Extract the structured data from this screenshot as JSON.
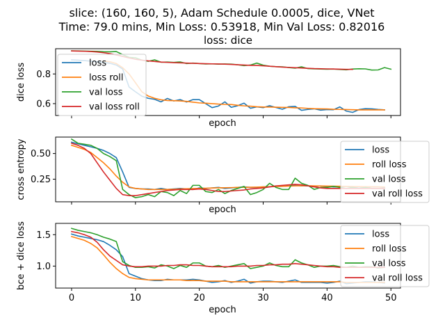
{
  "figure": {
    "suptitle_lines": [
      "slice: (160, 160, 5), Adam Schedule 0.0005, dice, VNet",
      "Time: 79.0 mins, Min Loss: 0.53918, Min Val Loss: 0.82016"
    ]
  },
  "colors": {
    "blue": "#1f77b4",
    "orange": "#ff7f0e",
    "green": "#2ca02c",
    "red": "#d62728"
  },
  "chart_data": [
    {
      "type": "line",
      "title": "loss: dice",
      "xlabel": "epoch",
      "ylabel": "dice loss",
      "xlim": [
        -2.5,
        51.5
      ],
      "ylim": [
        0.52,
        0.97
      ],
      "yticks": [
        0.6,
        0.8
      ],
      "ytick_labels": [
        "0.6",
        "0.8"
      ],
      "xticks": [
        0,
        10,
        20,
        30,
        40,
        50
      ],
      "xtick_labels": [],
      "legend_position": "upper left",
      "legend_alpha": 0.8,
      "series": [
        {
          "name": "loss",
          "color": "#1f77b4",
          "x_start": 0,
          "values": [
            0.895,
            0.893,
            0.89,
            0.886,
            0.882,
            0.878,
            0.872,
            0.86,
            0.833,
            0.712,
            0.68,
            0.65,
            0.636,
            0.629,
            0.612,
            0.635,
            0.618,
            0.627,
            0.611,
            0.627,
            0.627,
            0.6,
            0.573,
            0.584,
            0.612,
            0.575,
            0.586,
            0.603,
            0.569,
            0.578,
            0.573,
            0.586,
            0.574,
            0.562,
            0.579,
            0.582,
            0.555,
            0.561,
            0.565,
            0.556,
            0.56,
            0.559,
            0.578,
            0.55,
            0.541,
            0.56,
            0.566,
            0.565,
            0.561,
            0.558
          ]
        },
        {
          "name": "loss roll",
          "color": "#ff7f0e",
          "x_start": 5,
          "values": [
            0.887,
            0.882,
            0.87,
            0.842,
            0.8,
            0.741,
            0.68,
            0.651,
            0.636,
            0.626,
            0.621,
            0.62,
            0.618,
            0.615,
            0.61,
            0.605,
            0.603,
            0.6,
            0.597,
            0.595,
            0.594,
            0.589,
            0.585,
            0.583,
            0.579,
            0.577,
            0.577,
            0.576,
            0.575,
            0.574,
            0.572,
            0.571,
            0.568,
            0.566,
            0.565,
            0.564,
            0.562,
            0.561,
            0.56,
            0.559,
            0.558,
            0.558,
            0.558,
            0.558,
            0.558
          ]
        },
        {
          "name": "val loss",
          "color": "#2ca02c",
          "x_start": 0,
          "values": [
            0.956,
            0.955,
            0.954,
            0.953,
            0.952,
            0.95,
            0.949,
            0.951,
            0.93,
            0.912,
            0.909,
            0.893,
            0.885,
            0.895,
            0.879,
            0.88,
            0.878,
            0.881,
            0.87,
            0.873,
            0.87,
            0.867,
            0.868,
            0.866,
            0.867,
            0.866,
            0.862,
            0.856,
            0.86,
            0.873,
            0.859,
            0.852,
            0.849,
            0.848,
            0.843,
            0.839,
            0.848,
            0.836,
            0.834,
            0.833,
            0.832,
            0.833,
            0.83,
            0.828,
            0.833,
            0.835,
            0.834,
            0.826,
            0.827,
            0.843,
            0.832
          ]
        },
        {
          "name": "val loss roll",
          "color": "#d62728",
          "x_start": 0,
          "values": [
            0.955,
            0.954,
            0.953,
            0.951,
            0.948,
            0.943,
            0.937,
            0.928,
            0.918,
            0.908,
            0.899,
            0.893,
            0.888,
            0.884,
            0.88,
            0.878,
            0.876,
            0.875,
            0.873,
            0.872,
            0.87,
            0.869,
            0.868,
            0.867,
            0.866,
            0.864,
            0.862,
            0.86,
            0.858,
            0.857,
            0.855,
            0.852,
            0.849,
            0.846,
            0.844,
            0.842,
            0.84,
            0.838,
            0.836,
            0.835,
            0.834,
            0.833,
            0.832,
            0.831,
            0.831
          ]
        }
      ]
    },
    {
      "type": "line",
      "title": "",
      "xlabel": "epoch",
      "ylabel": "cross entropy",
      "xlim": [
        -2.5,
        51.5
      ],
      "ylim": [
        0.03,
        0.66
      ],
      "yticks": [
        0.25,
        0.5
      ],
      "ytick_labels": [
        "0.25",
        "0.50"
      ],
      "xticks": [
        0,
        10,
        20,
        30,
        40,
        50
      ],
      "xtick_labels": [],
      "legend_position": "upper right",
      "legend_alpha": 0.8,
      "series": [
        {
          "name": "loss",
          "color": "#1f77b4",
          "x_start": 0,
          "values": [
            0.61,
            0.595,
            0.58,
            0.565,
            0.55,
            0.53,
            0.5,
            0.46,
            0.32,
            0.17,
            0.16,
            0.155,
            0.155,
            0.15,
            0.16,
            0.15,
            0.155,
            0.16,
            0.155,
            0.15,
            0.165,
            0.16,
            0.165,
            0.17,
            0.16,
            0.165,
            0.17,
            0.175,
            0.17,
            0.17,
            0.175,
            0.175,
            0.18,
            0.18,
            0.185,
            0.19,
            0.185,
            0.185,
            0.18,
            0.185,
            0.18,
            0.175,
            0.175,
            0.18,
            0.175,
            0.175,
            0.175,
            0.175,
            0.175,
            0.17
          ]
        },
        {
          "name": "roll loss",
          "color": "#ff7f0e",
          "x_start": 0,
          "values": [
            0.58,
            0.56,
            0.54,
            0.51,
            0.46,
            0.41,
            0.35,
            0.28,
            0.22,
            0.175,
            0.16,
            0.155,
            0.15,
            0.15,
            0.15,
            0.15,
            0.152,
            0.155,
            0.157,
            0.158,
            0.16,
            0.162,
            0.164,
            0.166,
            0.167,
            0.168,
            0.17,
            0.171,
            0.172,
            0.173,
            0.175,
            0.177,
            0.179,
            0.181,
            0.183,
            0.185,
            0.186,
            0.186,
            0.185,
            0.184,
            0.183,
            0.182,
            0.181,
            0.18,
            0.179,
            0.178,
            0.177,
            0.176,
            0.175,
            0.174
          ]
        },
        {
          "name": "val loss",
          "color": "#2ca02c",
          "x_start": 0,
          "values": [
            0.64,
            0.6,
            0.59,
            0.58,
            0.55,
            0.5,
            0.47,
            0.43,
            0.15,
            0.1,
            0.07,
            0.08,
            0.1,
            0.08,
            0.13,
            0.12,
            0.09,
            0.14,
            0.11,
            0.19,
            0.19,
            0.13,
            0.12,
            0.15,
            0.11,
            0.14,
            0.16,
            0.18,
            0.1,
            0.12,
            0.15,
            0.21,
            0.17,
            0.15,
            0.15,
            0.26,
            0.21,
            0.19,
            0.15,
            0.17,
            0.17,
            0.18,
            0.17,
            0.16,
            0.17,
            0.16,
            0.17,
            0.16,
            0.16,
            0.16
          ]
        },
        {
          "name": "val roll loss",
          "color": "#d62728",
          "x_start": 0,
          "values": [
            0.6,
            0.58,
            0.55,
            0.5,
            0.41,
            0.32,
            0.24,
            0.16,
            0.1,
            0.09,
            0.09,
            0.1,
            0.11,
            0.12,
            0.13,
            0.14,
            0.145,
            0.15,
            0.15,
            0.15,
            0.155,
            0.15,
            0.14,
            0.13,
            0.13,
            0.135,
            0.14,
            0.145,
            0.155,
            0.16,
            0.165,
            0.175,
            0.185,
            0.19,
            0.195,
            0.2,
            0.195,
            0.185,
            0.175,
            0.165,
            0.16,
            0.16,
            0.16,
            0.16,
            0.16,
            0.16,
            0.16,
            0.16,
            0.16,
            0.16
          ]
        }
      ]
    },
    {
      "type": "line",
      "title": "",
      "xlabel": "epoch",
      "ylabel": "bce + dice loss",
      "xlim": [
        -2.5,
        51.5
      ],
      "ylim": [
        0.65,
        1.68
      ],
      "yticks": [
        1.0,
        1.5
      ],
      "ytick_labels": [
        "1.0",
        "1.5"
      ],
      "xticks": [
        0,
        10,
        20,
        30,
        40,
        50
      ],
      "xtick_labels": [
        "0",
        "10",
        "20",
        "30",
        "40",
        "50"
      ],
      "legend_position": "upper right",
      "legend_alpha": 0.8,
      "series": [
        {
          "name": "loss",
          "color": "#1f77b4",
          "x_start": 0,
          "values": [
            1.51,
            1.48,
            1.46,
            1.44,
            1.42,
            1.39,
            1.33,
            1.26,
            1.15,
            0.88,
            0.84,
            0.8,
            0.78,
            0.77,
            0.77,
            0.79,
            0.78,
            0.78,
            0.78,
            0.79,
            0.78,
            0.76,
            0.74,
            0.75,
            0.77,
            0.74,
            0.76,
            0.79,
            0.73,
            0.75,
            0.76,
            0.76,
            0.75,
            0.74,
            0.76,
            0.78,
            0.74,
            0.74,
            0.74,
            0.74,
            0.73,
            0.74,
            0.76,
            0.72,
            0.73,
            0.74,
            0.75,
            0.75,
            0.74,
            0.73
          ]
        },
        {
          "name": "roll loss",
          "color": "#ff7f0e",
          "x_start": 0,
          "values": [
            1.47,
            1.44,
            1.41,
            1.36,
            1.29,
            1.18,
            1.06,
            0.96,
            0.88,
            0.82,
            0.8,
            0.79,
            0.78,
            0.78,
            0.78,
            0.78,
            0.78,
            0.78,
            0.77,
            0.77,
            0.77,
            0.76,
            0.76,
            0.76,
            0.76,
            0.75,
            0.75,
            0.75,
            0.75,
            0.75,
            0.75,
            0.75,
            0.75,
            0.75,
            0.75,
            0.75,
            0.75,
            0.75,
            0.75,
            0.75,
            0.75,
            0.75,
            0.75,
            0.74,
            0.74,
            0.74,
            0.74,
            0.74,
            0.74,
            0.74
          ]
        },
        {
          "name": "val loss",
          "color": "#2ca02c",
          "x_start": 0,
          "values": [
            1.6,
            1.57,
            1.55,
            1.53,
            1.5,
            1.46,
            1.43,
            1.39,
            1.07,
            1.01,
            0.98,
            0.98,
            0.99,
            0.97,
            1.02,
            1.0,
            0.96,
            1.01,
            0.98,
            1.05,
            1.05,
            1.0,
            0.99,
            1.01,
            0.98,
            1.0,
            1.02,
            1.04,
            0.96,
            0.98,
            1.0,
            1.05,
            1.01,
            0.99,
            0.99,
            1.1,
            1.05,
            1.02,
            0.98,
            1.0,
            1.0,
            1.01,
            0.99,
            0.98,
            1.0,
            0.98,
            0.99,
            0.99,
            0.97,
            0.98
          ]
        },
        {
          "name": "val roll loss",
          "color": "#d62728",
          "x_start": 0,
          "values": [
            1.55,
            1.53,
            1.5,
            1.46,
            1.38,
            1.26,
            1.16,
            1.09,
            1.02,
            1.0,
            0.99,
            0.99,
            1.0,
            1.0,
            1.0,
            1.01,
            1.01,
            1.02,
            1.02,
            1.01,
            1.01,
            1.0,
            0.99,
            0.99,
            0.99,
            0.99,
            1.0,
            1.0,
            1.0,
            1.01,
            1.01,
            1.02,
            1.02,
            1.03,
            1.03,
            1.04,
            1.03,
            1.02,
            1.01,
            1.0,
            0.99,
            0.99,
            0.98,
            0.98,
            0.98,
            0.98,
            0.98,
            0.98,
            0.98,
            0.98
          ]
        }
      ]
    }
  ]
}
